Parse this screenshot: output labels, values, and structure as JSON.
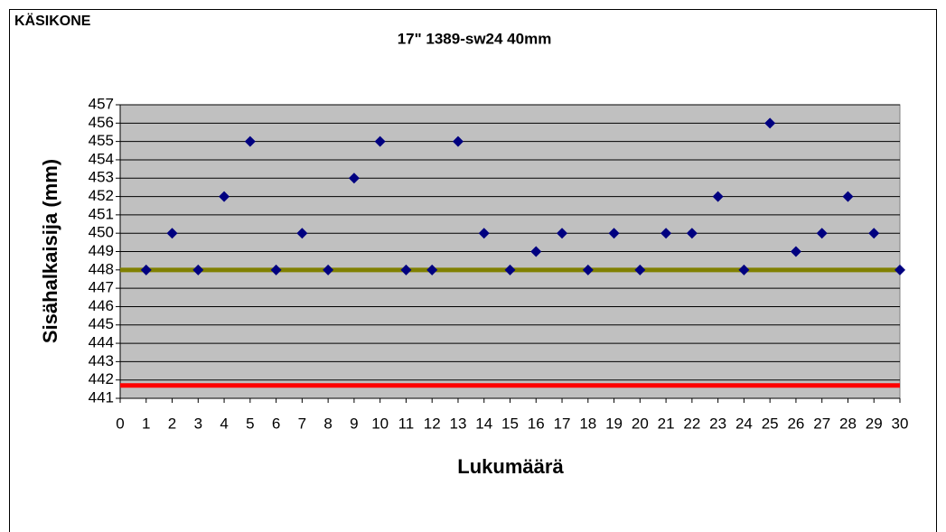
{
  "header": {
    "label": "KÄSIKONE"
  },
  "chart_data": {
    "type": "scatter",
    "title": "17\" 1389-sw24  40mm",
    "x_label": "Lukumäärä",
    "y_label": "Sisähalkaisija (mm)",
    "series": [
      {
        "color": "#000080",
        "x": [
          1,
          2,
          3,
          4,
          5,
          6,
          7,
          8,
          9,
          10,
          11,
          12,
          13,
          14,
          15,
          16,
          17,
          18,
          19,
          20,
          21,
          22,
          23,
          24,
          25,
          26,
          27,
          28,
          29,
          30
        ],
        "values": [
          448,
          450,
          448,
          452,
          455,
          448,
          450,
          448,
          453,
          455,
          448,
          448,
          455,
          450,
          448,
          449,
          450,
          448,
          450,
          448,
          450,
          450,
          452,
          448,
          456,
          449,
          450,
          452,
          450,
          448
        ]
      }
    ],
    "reference_lines": [
      {
        "value": 448,
        "color": "#808000"
      },
      {
        "value": 441.7,
        "color": "#ff0000"
      }
    ],
    "xlim": [
      0,
      30
    ],
    "xticks": [
      0,
      1,
      2,
      3,
      4,
      5,
      6,
      7,
      8,
      9,
      10,
      11,
      12,
      13,
      14,
      15,
      16,
      17,
      18,
      19,
      20,
      21,
      22,
      23,
      24,
      25,
      26,
      27,
      28,
      29,
      30
    ],
    "ylim": [
      441,
      457
    ],
    "yticks": [
      441,
      442,
      443,
      444,
      445,
      446,
      447,
      448,
      449,
      450,
      451,
      452,
      453,
      454,
      455,
      456,
      457
    ],
    "grid": true,
    "plot_background": "#c0c0c0"
  }
}
